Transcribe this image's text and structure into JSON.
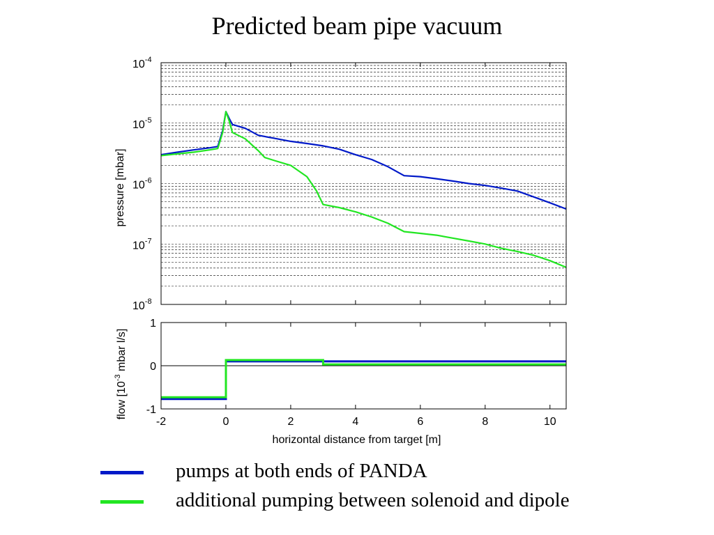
{
  "title": "Predicted beam pipe vacuum",
  "colors": {
    "series_blue": "#0019c8",
    "series_green": "#22e622"
  },
  "chart_data": [
    {
      "type": "line",
      "name": "pressure-plot",
      "ylabel": "pressure [mbar]",
      "xlim": [
        -2,
        10.5
      ],
      "ylim": [
        1e-08,
        0.0001
      ],
      "yscale": "log",
      "ytick_labels": [
        {
          "base": "10",
          "exp": "-8"
        },
        {
          "base": "10",
          "exp": "-7"
        },
        {
          "base": "10",
          "exp": "-6"
        },
        {
          "base": "10",
          "exp": "-5"
        },
        {
          "base": "10",
          "exp": "-4"
        }
      ],
      "grid": "y-major-and-minor-dashed",
      "series": [
        {
          "color": "#0019c8",
          "points": [
            [
              -2,
              3e-06
            ],
            [
              -1.5,
              3.3e-06
            ],
            [
              -1.0,
              3.6e-06
            ],
            [
              -0.5,
              3.9e-06
            ],
            [
              -0.25,
              4.1e-06
            ],
            [
              -0.1,
              7.5e-06
            ],
            [
              0.0,
              1.55e-05
            ],
            [
              0.1,
              1.2e-05
            ],
            [
              0.2,
              9.5e-06
            ],
            [
              0.6,
              8.2e-06
            ],
            [
              1.0,
              6.3e-06
            ],
            [
              1.5,
              5.6e-06
            ],
            [
              2.0,
              5e-06
            ],
            [
              2.5,
              4.6e-06
            ],
            [
              3.0,
              4.2e-06
            ],
            [
              3.5,
              3.7e-06
            ],
            [
              4.0,
              3e-06
            ],
            [
              4.5,
              2.5e-06
            ],
            [
              5.0,
              1.9e-06
            ],
            [
              5.5,
              1.35e-06
            ],
            [
              6.0,
              1.3e-06
            ],
            [
              6.5,
              1.2e-06
            ],
            [
              7.0,
              1.1e-06
            ],
            [
              7.5,
              1e-06
            ],
            [
              8.0,
              9.3e-07
            ],
            [
              8.5,
              8.4e-07
            ],
            [
              9.0,
              7.5e-07
            ],
            [
              9.5,
              6e-07
            ],
            [
              10.0,
              4.8e-07
            ],
            [
              10.5,
              3.8e-07
            ]
          ]
        },
        {
          "color": "#22e622",
          "points": [
            [
              -2,
              2.9e-06
            ],
            [
              -1.5,
              3.1e-06
            ],
            [
              -1.0,
              3.3e-06
            ],
            [
              -0.5,
              3.6e-06
            ],
            [
              -0.25,
              3.8e-06
            ],
            [
              -0.1,
              7e-06
            ],
            [
              0.0,
              1.55e-05
            ],
            [
              0.1,
              1.1e-05
            ],
            [
              0.2,
              7e-06
            ],
            [
              0.6,
              5.5e-06
            ],
            [
              1.0,
              3.5e-06
            ],
            [
              1.2,
              2.7e-06
            ],
            [
              1.5,
              2.4e-06
            ],
            [
              2.0,
              2e-06
            ],
            [
              2.5,
              1.3e-06
            ],
            [
              2.8,
              7.5e-07
            ],
            [
              3.0,
              4.5e-07
            ],
            [
              3.5,
              4e-07
            ],
            [
              4.0,
              3.4e-07
            ],
            [
              4.5,
              2.8e-07
            ],
            [
              5.0,
              2.2e-07
            ],
            [
              5.5,
              1.6e-07
            ],
            [
              6.0,
              1.5e-07
            ],
            [
              6.5,
              1.4e-07
            ],
            [
              7.0,
              1.25e-07
            ],
            [
              7.5,
              1.12e-07
            ],
            [
              8.0,
              1e-07
            ],
            [
              8.5,
              8.5e-08
            ],
            [
              9.0,
              7.5e-08
            ],
            [
              9.5,
              6.5e-08
            ],
            [
              10.0,
              5.3e-08
            ],
            [
              10.5,
              4.1e-08
            ]
          ]
        }
      ]
    },
    {
      "type": "line",
      "name": "flow-plot",
      "xlabel": "horizontal distance from target [m]",
      "ylabel": {
        "pre": "flow [10",
        "exp": "-3",
        "post": " mbar l/s]"
      },
      "xlim": [
        -2,
        10.5
      ],
      "ylim": [
        -1,
        1
      ],
      "xticks": [
        -2,
        0,
        2,
        4,
        6,
        8,
        10
      ],
      "yticks": [
        -1,
        0,
        1
      ],
      "zero_line": true,
      "series": [
        {
          "color": "#0019c8",
          "points": [
            [
              -2,
              -0.77
            ],
            [
              0,
              -0.77
            ],
            [
              0,
              0.1
            ],
            [
              10.5,
              0.1
            ]
          ]
        },
        {
          "color": "#22e622",
          "points": [
            [
              -2,
              -0.73
            ],
            [
              0,
              -0.73
            ],
            [
              0,
              0.13
            ],
            [
              3,
              0.13
            ],
            [
              3,
              0.03
            ],
            [
              10.5,
              0.03
            ]
          ]
        }
      ]
    }
  ],
  "legend": [
    {
      "label": "pumps at both ends of PANDA",
      "color": "#0019c8"
    },
    {
      "label": "additional pumping between solenoid and dipole",
      "color": "#22e622"
    }
  ]
}
